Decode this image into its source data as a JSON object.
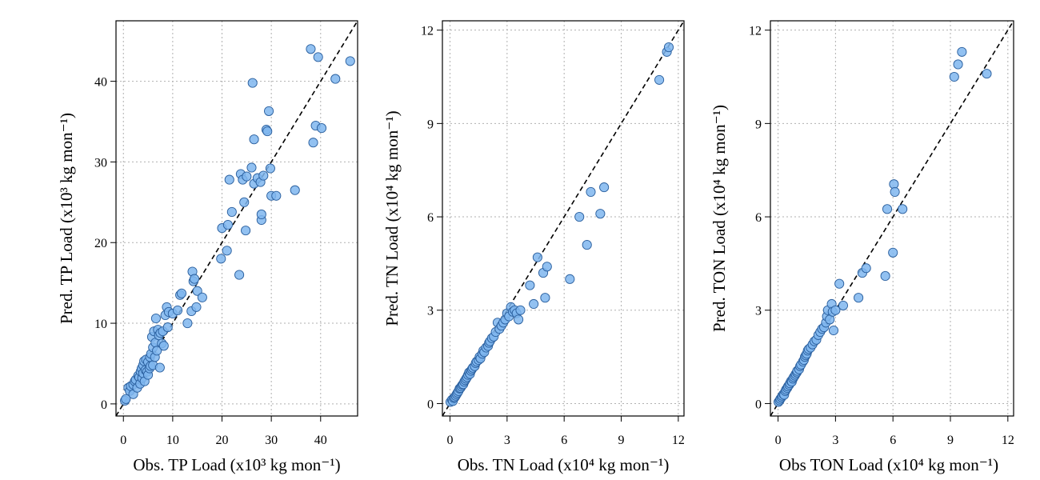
{
  "chart_data": [
    {
      "type": "scatter",
      "xlabel": "Obs. TP Load (x10³ kg mon⁻¹)",
      "ylabel": "Pred. TP Load (x10³ kg mon⁻¹)",
      "xlim": [
        -1.5,
        47.5
      ],
      "ylim": [
        -1.5,
        47.5
      ],
      "xticks": [
        "0",
        "10",
        "20",
        "30",
        "40"
      ],
      "yticks": [
        "0",
        "10",
        "20",
        "30",
        "40"
      ],
      "xtick_values": [
        0,
        10,
        20,
        30,
        40
      ],
      "ytick_values": [
        0,
        10,
        20,
        30,
        40
      ],
      "grid": true,
      "reference_line": "1:1",
      "colors": {
        "marker_fill": "#7fb6ef",
        "marker_edge": "#2a5f9e"
      },
      "points": [
        [
          0.3,
          0.4
        ],
        [
          0.5,
          0.6
        ],
        [
          1,
          2
        ],
        [
          1.3,
          1.6
        ],
        [
          1.5,
          2.2
        ],
        [
          2,
          1.2
        ],
        [
          2,
          2.4
        ],
        [
          2.3,
          2.8
        ],
        [
          2.5,
          3
        ],
        [
          2.8,
          2
        ],
        [
          3,
          3.5
        ],
        [
          3.2,
          3.3
        ],
        [
          3.4,
          2.5
        ],
        [
          3.5,
          4
        ],
        [
          3.7,
          4.4
        ],
        [
          3.8,
          3.2
        ],
        [
          4,
          3.8
        ],
        [
          4,
          4.8
        ],
        [
          4.2,
          5.3
        ],
        [
          4.3,
          2.8
        ],
        [
          4.5,
          4.2
        ],
        [
          4.6,
          5.5
        ],
        [
          4.8,
          4
        ],
        [
          5,
          5.2
        ],
        [
          5,
          3.6
        ],
        [
          5.3,
          4.4
        ],
        [
          5.4,
          5.8
        ],
        [
          5.5,
          4.7
        ],
        [
          5.6,
          6.2
        ],
        [
          5.8,
          8.3
        ],
        [
          6,
          4.8
        ],
        [
          6,
          7
        ],
        [
          6.2,
          9
        ],
        [
          6.4,
          5.8
        ],
        [
          6.5,
          7.6
        ],
        [
          6.6,
          10.6
        ],
        [
          6.8,
          6.6
        ],
        [
          7,
          9.2
        ],
        [
          7.2,
          8.5
        ],
        [
          7.4,
          4.5
        ],
        [
          7.5,
          8.8
        ],
        [
          7.8,
          7.5
        ],
        [
          8,
          9
        ],
        [
          8.2,
          7.2
        ],
        [
          8.5,
          11
        ],
        [
          8.8,
          12
        ],
        [
          9,
          9.5
        ],
        [
          9.2,
          11.4
        ],
        [
          10,
          11.2
        ],
        [
          11,
          11.6
        ],
        [
          11.5,
          13.5
        ],
        [
          11.8,
          13.7
        ],
        [
          13,
          10
        ],
        [
          13.8,
          11.5
        ],
        [
          14,
          16.4
        ],
        [
          14.2,
          15.2
        ],
        [
          14.4,
          15.5
        ],
        [
          14.8,
          12
        ],
        [
          15,
          14
        ],
        [
          16,
          13.2
        ],
        [
          19.8,
          18
        ],
        [
          20,
          21.8
        ],
        [
          21,
          19
        ],
        [
          21.2,
          22.2
        ],
        [
          21.5,
          27.8
        ],
        [
          22,
          23.8
        ],
        [
          23.5,
          16
        ],
        [
          23.8,
          28.5
        ],
        [
          24.2,
          27.8
        ],
        [
          24.5,
          25
        ],
        [
          24.8,
          21.5
        ],
        [
          25,
          28.2
        ],
        [
          26,
          29.3
        ],
        [
          26.2,
          39.8
        ],
        [
          26.5,
          32.8
        ],
        [
          26.5,
          27.3
        ],
        [
          27.2,
          28
        ],
        [
          27.8,
          27.5
        ],
        [
          28,
          22.8
        ],
        [
          28,
          23.5
        ],
        [
          28.4,
          28.3
        ],
        [
          29,
          34
        ],
        [
          29.2,
          33.8
        ],
        [
          29.5,
          36.3
        ],
        [
          29.8,
          29.2
        ],
        [
          30,
          25.8
        ],
        [
          31,
          25.8
        ],
        [
          34.8,
          26.5
        ],
        [
          38,
          44
        ],
        [
          38.5,
          32.4
        ],
        [
          39,
          34.5
        ],
        [
          39.5,
          43
        ],
        [
          40.2,
          34.2
        ],
        [
          43,
          40.3
        ],
        [
          46,
          42.5
        ]
      ]
    },
    {
      "type": "scatter",
      "xlabel": "Obs. TN Load (x10⁴ kg mon⁻¹)",
      "ylabel": "Pred. TN Load (x10⁴ kg mon⁻¹)",
      "xlim": [
        -0.4,
        12.3
      ],
      "ylim": [
        -0.4,
        12.3
      ],
      "xticks": [
        "0",
        "3",
        "6",
        "9",
        "12"
      ],
      "yticks": [
        "0",
        "3",
        "6",
        "9",
        "12"
      ],
      "xtick_values": [
        0,
        3,
        6,
        9,
        12
      ],
      "ytick_values": [
        0,
        3,
        6,
        9,
        12
      ],
      "grid": true,
      "reference_line": "1:1",
      "colors": {
        "marker_fill": "#7fb6ef",
        "marker_edge": "#2a5f9e"
      },
      "points": [
        [
          0.02,
          0.05
        ],
        [
          0.1,
          0.12
        ],
        [
          0.15,
          0.08
        ],
        [
          0.2,
          0.18
        ],
        [
          0.25,
          0.2
        ],
        [
          0.3,
          0.25
        ],
        [
          0.35,
          0.3
        ],
        [
          0.4,
          0.35
        ],
        [
          0.45,
          0.4
        ],
        [
          0.5,
          0.48
        ],
        [
          0.55,
          0.5
        ],
        [
          0.6,
          0.55
        ],
        [
          0.65,
          0.6
        ],
        [
          0.7,
          0.62
        ],
        [
          0.75,
          0.7
        ],
        [
          0.8,
          0.75
        ],
        [
          0.85,
          0.8
        ],
        [
          0.9,
          0.85
        ],
        [
          0.95,
          0.92
        ],
        [
          1,
          1
        ],
        [
          1.05,
          0.95
        ],
        [
          1.1,
          1.05
        ],
        [
          1.15,
          1.1
        ],
        [
          1.2,
          1.15
        ],
        [
          1.3,
          1.2
        ],
        [
          1.35,
          1.3
        ],
        [
          1.4,
          1.35
        ],
        [
          1.5,
          1.4
        ],
        [
          1.55,
          1.5
        ],
        [
          1.6,
          1.45
        ],
        [
          1.7,
          1.6
        ],
        [
          1.75,
          1.7
        ],
        [
          1.8,
          1.65
        ],
        [
          1.9,
          1.8
        ],
        [
          2,
          1.85
        ],
        [
          2.05,
          1.95
        ],
        [
          2.1,
          2
        ],
        [
          2.2,
          2.1
        ],
        [
          2.3,
          2.15
        ],
        [
          2.4,
          2.3
        ],
        [
          2.5,
          2.6
        ],
        [
          2.6,
          2.4
        ],
        [
          2.7,
          2.5
        ],
        [
          2.8,
          2.6
        ],
        [
          2.9,
          2.7
        ],
        [
          3,
          2.9
        ],
        [
          3.1,
          2.8
        ],
        [
          3.2,
          3.1
        ],
        [
          3.3,
          2.95
        ],
        [
          3.4,
          3
        ],
        [
          3.5,
          2.9
        ],
        [
          3.6,
          2.7
        ],
        [
          3.7,
          3
        ],
        [
          4.2,
          3.8
        ],
        [
          4.4,
          3.2
        ],
        [
          4.6,
          4.7
        ],
        [
          4.9,
          4.2
        ],
        [
          5,
          3.4
        ],
        [
          5.1,
          4.4
        ],
        [
          6.3,
          4
        ],
        [
          6.8,
          6
        ],
        [
          7.2,
          5.1
        ],
        [
          7.4,
          6.8
        ],
        [
          7.9,
          6.1
        ],
        [
          8.1,
          6.95
        ],
        [
          11,
          10.4
        ],
        [
          11.4,
          11.3
        ],
        [
          11.5,
          11.45
        ]
      ]
    },
    {
      "type": "scatter",
      "xlabel": "Obs TON Load (x10⁴ kg mon⁻¹)",
      "ylabel": "Pred. TON Load (x10⁴ kg mon⁻¹)",
      "xlim": [
        -0.4,
        12.3
      ],
      "ylim": [
        -0.4,
        12.3
      ],
      "xticks": [
        "0",
        "3",
        "6",
        "9",
        "12"
      ],
      "yticks": [
        "0",
        "3",
        "6",
        "9",
        "12"
      ],
      "xtick_values": [
        0,
        3,
        6,
        9,
        12
      ],
      "ytick_values": [
        0,
        3,
        6,
        9,
        12
      ],
      "grid": true,
      "reference_line": "1:1",
      "colors": {
        "marker_fill": "#7fb6ef",
        "marker_edge": "#2a5f9e"
      },
      "points": [
        [
          0.02,
          0.05
        ],
        [
          0.08,
          0.1
        ],
        [
          0.12,
          0.15
        ],
        [
          0.18,
          0.2
        ],
        [
          0.22,
          0.25
        ],
        [
          0.28,
          0.3
        ],
        [
          0.32,
          0.28
        ],
        [
          0.38,
          0.4
        ],
        [
          0.42,
          0.45
        ],
        [
          0.48,
          0.5
        ],
        [
          0.52,
          0.55
        ],
        [
          0.58,
          0.6
        ],
        [
          0.62,
          0.65
        ],
        [
          0.68,
          0.72
        ],
        [
          0.72,
          0.7
        ],
        [
          0.78,
          0.8
        ],
        [
          0.82,
          0.85
        ],
        [
          0.88,
          0.9
        ],
        [
          0.92,
          0.95
        ],
        [
          0.98,
          1
        ],
        [
          1,
          1.05
        ],
        [
          1.1,
          1.1
        ],
        [
          1.15,
          1.2
        ],
        [
          1.2,
          1.25
        ],
        [
          1.3,
          1.35
        ],
        [
          1.35,
          1.4
        ],
        [
          1.4,
          1.5
        ],
        [
          1.45,
          1.55
        ],
        [
          1.5,
          1.6
        ],
        [
          1.55,
          1.7
        ],
        [
          1.6,
          1.75
        ],
        [
          1.7,
          1.8
        ],
        [
          1.8,
          1.9
        ],
        [
          1.9,
          2
        ],
        [
          2,
          2.05
        ],
        [
          2.1,
          2.2
        ],
        [
          2.2,
          2.3
        ],
        [
          2.3,
          2.4
        ],
        [
          2.4,
          2.45
        ],
        [
          2.5,
          2.6
        ],
        [
          2.55,
          2.8
        ],
        [
          2.6,
          3
        ],
        [
          2.7,
          2.7
        ],
        [
          2.8,
          3.2
        ],
        [
          2.85,
          2.95
        ],
        [
          2.9,
          2.35
        ],
        [
          3,
          3
        ],
        [
          3.2,
          3.85
        ],
        [
          3.4,
          3.15
        ],
        [
          4.2,
          3.4
        ],
        [
          4.4,
          4.2
        ],
        [
          4.6,
          4.35
        ],
        [
          5.6,
          4.1
        ],
        [
          5.7,
          6.25
        ],
        [
          6,
          4.85
        ],
        [
          6.05,
          7.05
        ],
        [
          6.1,
          6.8
        ],
        [
          6.5,
          6.25
        ],
        [
          9.2,
          10.5
        ],
        [
          9.4,
          10.9
        ],
        [
          9.6,
          11.3
        ],
        [
          10.9,
          10.6
        ]
      ]
    }
  ]
}
